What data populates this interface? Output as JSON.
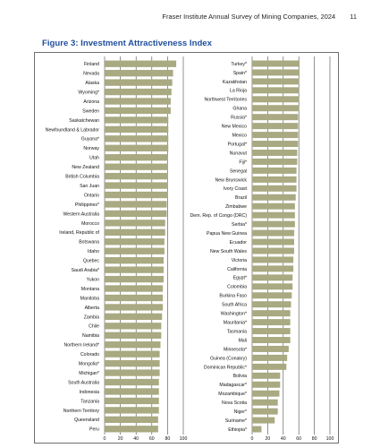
{
  "header": {
    "publication": "Fraser Institute Annual Survey of Mining Companies, 2024",
    "page_number": "11"
  },
  "figure_title": "Figure 3: Investment Attractiveness Index",
  "colors": {
    "bar": "#a9a982",
    "grid": "#4a4a4a",
    "title": "#1f4e9c"
  },
  "chart_data": [
    {
      "type": "bar",
      "orientation": "horizontal",
      "title": "",
      "xlim": [
        0,
        100
      ],
      "xticks": [
        0,
        20,
        40,
        60,
        80,
        100
      ],
      "grid": "vertical at 20-unit ticks",
      "categories": [
        "Finland",
        "Nevada",
        "Alaska",
        "Wyoming*",
        "Arizona",
        "Sweden",
        "Saskatchewan",
        "Newfoundland & Labrador",
        "Guyana*",
        "Norway",
        "Utah",
        "New Zealand",
        "British Columbia",
        "San Juan",
        "Ontario",
        "Philippines*",
        "Western Australia",
        "Morocco",
        "Ireland, Republic of",
        "Botswana",
        "Idaho",
        "Quebec",
        "Saudi Arabia*",
        "Yukon",
        "Montana",
        "Manitoba",
        "Alberta",
        "Zambia",
        "Chile",
        "Namibia",
        "Northern Ireland*",
        "Colorado",
        "Mongolia*",
        "Michigan*",
        "South Australia",
        "Indonesia",
        "Tanzania",
        "Northern Territory",
        "Queensland",
        "Peru"
      ],
      "values": [
        91,
        87,
        86,
        85,
        84,
        84,
        81,
        81,
        81,
        81,
        80,
        80,
        80,
        80,
        80,
        79,
        79,
        77,
        77,
        76,
        76,
        75,
        75,
        75,
        74,
        74,
        74,
        73,
        72,
        72,
        71,
        70,
        70,
        70,
        69,
        69,
        69,
        69,
        68,
        68
      ]
    },
    {
      "type": "bar",
      "orientation": "horizontal",
      "title": "",
      "xlim": [
        0,
        100
      ],
      "xticks": [
        0,
        20,
        40,
        60,
        80,
        100
      ],
      "grid": "vertical at 20-unit ticks",
      "categories": [
        "Turkey*",
        "Spain*",
        "Kazakhstan",
        "La Rioja",
        "Northwest Territories",
        "Ghana",
        "Russia*",
        "New Mexico",
        "Mexico",
        "Portugal*",
        "Nunavut",
        "Fiji*",
        "Senegal",
        "New Brunswick",
        "Ivory Coast",
        "Brazil",
        "Zimbabwe",
        "Dem. Rep. of Congo (DRC)",
        "Serbia*",
        "Papua New Guinea",
        "Ecuador",
        "New South Wales",
        "Victoria",
        "California",
        "Egypt*",
        "Colombia",
        "Burkina Faso",
        "South Africa",
        "Washington*",
        "Mauritania*",
        "Tasmania",
        "Mali",
        "Minnesota*",
        "Guinea (Conakry)",
        "Dominican Republic*",
        "Bolivia",
        "Madagascar*",
        "Mozambique*",
        "Nova Scotia",
        "Niger*",
        "Suriname*",
        "Ethiopia*"
      ],
      "values": [
        61,
        61,
        60,
        60,
        60,
        60,
        59,
        59,
        59,
        59,
        58,
        58,
        57,
        57,
        57,
        56,
        55,
        55,
        55,
        54,
        54,
        54,
        53,
        53,
        52,
        52,
        51,
        50,
        49,
        49,
        49,
        49,
        47,
        45,
        44,
        36,
        36,
        35,
        33,
        33,
        29,
        12
      ]
    }
  ]
}
